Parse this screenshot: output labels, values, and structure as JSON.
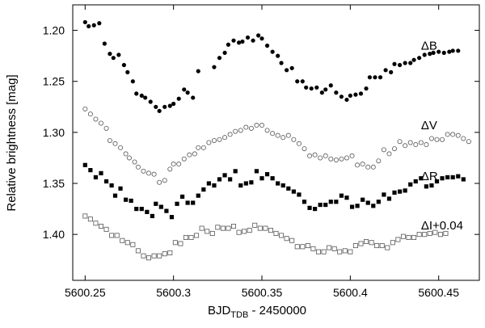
{
  "chart_data": {
    "type": "scatter",
    "title": "",
    "xlabel_main": "BJD",
    "xlabel_sub": "TDB",
    "xlabel_rest": " - 2450000",
    "ylabel": "Relative brightness [mag]",
    "xlim": [
      5600.243,
      5600.473
    ],
    "ylim": [
      1.175,
      1.445
    ],
    "y_inverted": true,
    "grid": false,
    "x_ticks": [
      5600.25,
      5600.3,
      5600.35,
      5600.4,
      5600.45
    ],
    "x_tick_labels": [
      "5600.25",
      "5600.3",
      "5600.35",
      "5600.4",
      "5600.45"
    ],
    "y_ticks": [
      1.2,
      1.25,
      1.3,
      1.35,
      1.4
    ],
    "y_tick_labels": [
      "1.20",
      "1.25",
      "1.30",
      "1.35",
      "1.40"
    ],
    "series": [
      {
        "name": "ΔB",
        "marker": "filled-circle",
        "color": "#000000",
        "label_x": 5600.44,
        "label_y": 1.215,
        "x": [
          5600.25,
          5600.252,
          5600.255,
          5600.258,
          5600.261,
          5600.264,
          5600.266,
          5600.269,
          5600.272,
          5600.274,
          5600.277,
          5600.279,
          5600.282,
          5600.284,
          5600.287,
          5600.29,
          5600.292,
          5600.295,
          5600.298,
          5600.3,
          5600.303,
          5600.306,
          5600.308,
          5600.311,
          5600.314,
          5600.323,
          5600.326,
          5600.329,
          5600.331,
          5600.334,
          5600.337,
          5600.339,
          5600.342,
          5600.345,
          5600.348,
          5600.35,
          5600.353,
          5600.356,
          5600.359,
          5600.361,
          5600.364,
          5600.367,
          5600.37,
          5600.373,
          5600.375,
          5600.378,
          5600.381,
          5600.384,
          5600.386,
          5600.389,
          5600.392,
          5600.395,
          5600.398,
          5600.4,
          5600.403,
          5600.406,
          5600.409,
          5600.411,
          5600.414,
          5600.417,
          5600.42,
          5600.423,
          5600.425,
          5600.428,
          5600.431,
          5600.434,
          5600.436,
          5600.439,
          5600.442,
          5600.445,
          5600.447,
          5600.45,
          5600.453,
          5600.456,
          5600.458,
          5600.461
        ],
        "y": [
          1.192,
          1.196,
          1.195,
          1.193,
          1.213,
          1.223,
          1.227,
          1.224,
          1.234,
          1.241,
          1.25,
          1.262,
          1.264,
          1.266,
          1.27,
          1.275,
          1.279,
          1.275,
          1.274,
          1.272,
          1.267,
          1.258,
          1.261,
          1.266,
          1.24,
          1.236,
          1.227,
          1.222,
          1.214,
          1.21,
          1.212,
          1.211,
          1.207,
          1.21,
          1.205,
          1.208,
          1.215,
          1.221,
          1.225,
          1.232,
          1.239,
          1.237,
          1.25,
          1.25,
          1.256,
          1.257,
          1.256,
          1.261,
          1.258,
          1.254,
          1.261,
          1.265,
          1.268,
          1.264,
          1.263,
          1.262,
          1.257,
          1.246,
          1.246,
          1.246,
          1.239,
          1.241,
          1.233,
          1.234,
          1.232,
          1.232,
          1.229,
          1.227,
          1.224,
          1.223,
          1.222,
          1.221,
          1.222,
          1.221,
          1.22,
          1.22
        ]
      },
      {
        "name": "ΔV",
        "marker": "open-circle",
        "color": "#555555",
        "label_x": 5600.44,
        "label_y": 1.293,
        "x": [
          5600.25,
          5600.253,
          5600.256,
          5600.259,
          5600.262,
          5600.264,
          5600.267,
          5600.27,
          5600.273,
          5600.275,
          5600.278,
          5600.28,
          5600.283,
          5600.286,
          5600.289,
          5600.292,
          5600.295,
          5600.298,
          5600.3,
          5600.303,
          5600.306,
          5600.309,
          5600.312,
          5600.314,
          5600.317,
          5600.32,
          5600.323,
          5600.326,
          5600.329,
          5600.332,
          5600.335,
          5600.338,
          5600.341,
          5600.344,
          5600.347,
          5600.35,
          5600.353,
          5600.356,
          5600.359,
          5600.362,
          5600.365,
          5600.368,
          5600.371,
          5600.374,
          5600.377,
          5600.38,
          5600.383,
          5600.386,
          5600.389,
          5600.392,
          5600.395,
          5600.398,
          5600.401,
          5600.404,
          5600.407,
          5600.41,
          5600.413,
          5600.416,
          5600.419,
          5600.422,
          5600.425,
          5600.428,
          5600.431,
          5600.434,
          5600.437,
          5600.44,
          5600.443,
          5600.446,
          5600.449,
          5600.452,
          5600.455,
          5600.458,
          5600.461,
          5600.464,
          5600.467
        ],
        "y": [
          1.277,
          1.282,
          1.287,
          1.291,
          1.296,
          1.308,
          1.311,
          1.315,
          1.321,
          1.325,
          1.329,
          1.334,
          1.338,
          1.34,
          1.341,
          1.349,
          1.347,
          1.336,
          1.331,
          1.331,
          1.326,
          1.322,
          1.321,
          1.315,
          1.315,
          1.31,
          1.308,
          1.307,
          1.305,
          1.302,
          1.299,
          1.298,
          1.295,
          1.296,
          1.293,
          1.293,
          1.298,
          1.301,
          1.303,
          1.305,
          1.303,
          1.307,
          1.311,
          1.316,
          1.323,
          1.322,
          1.325,
          1.323,
          1.326,
          1.327,
          1.326,
          1.325,
          1.323,
          1.332,
          1.331,
          1.334,
          1.334,
          1.328,
          1.317,
          1.321,
          1.316,
          1.309,
          1.313,
          1.31,
          1.312,
          1.31,
          1.312,
          1.306,
          1.307,
          1.307,
          1.302,
          1.302,
          1.303,
          1.306,
          1.309
        ]
      },
      {
        "name": "ΔR",
        "marker": "filled-square",
        "color": "#000000",
        "label_x": 5600.44,
        "label_y": 1.343,
        "x": [
          5600.25,
          5600.253,
          5600.256,
          5600.259,
          5600.262,
          5600.265,
          5600.267,
          5600.27,
          5600.273,
          5600.276,
          5600.279,
          5600.282,
          5600.285,
          5600.288,
          5600.29,
          5600.293,
          5600.296,
          5600.299,
          5600.302,
          5600.305,
          5600.308,
          5600.311,
          5600.314,
          5600.317,
          5600.32,
          5600.323,
          5600.326,
          5600.329,
          5600.332,
          5600.335,
          5600.338,
          5600.341,
          5600.344,
          5600.347,
          5600.35,
          5600.353,
          5600.356,
          5600.359,
          5600.362,
          5600.365,
          5600.368,
          5600.371,
          5600.374,
          5600.377,
          5600.38,
          5600.383,
          5600.386,
          5600.389,
          5600.392,
          5600.395,
          5600.398,
          5600.401,
          5600.404,
          5600.407,
          5600.41,
          5600.413,
          5600.416,
          5600.419,
          5600.422,
          5600.425,
          5600.428,
          5600.431,
          5600.434,
          5600.437,
          5600.44,
          5600.443,
          5600.446,
          5600.449,
          5600.452,
          5600.455,
          5600.458,
          5600.461,
          5600.464
        ],
        "y": [
          1.332,
          1.337,
          1.344,
          1.34,
          1.348,
          1.352,
          1.362,
          1.355,
          1.366,
          1.367,
          1.375,
          1.375,
          1.378,
          1.382,
          1.37,
          1.373,
          1.377,
          1.383,
          1.37,
          1.363,
          1.369,
          1.369,
          1.362,
          1.356,
          1.35,
          1.352,
          1.346,
          1.342,
          1.346,
          1.338,
          1.352,
          1.35,
          1.349,
          1.338,
          1.345,
          1.341,
          1.345,
          1.35,
          1.352,
          1.355,
          1.358,
          1.361,
          1.368,
          1.374,
          1.375,
          1.371,
          1.371,
          1.368,
          1.368,
          1.362,
          1.364,
          1.373,
          1.372,
          1.366,
          1.369,
          1.372,
          1.368,
          1.361,
          1.365,
          1.359,
          1.358,
          1.357,
          1.351,
          1.348,
          1.345,
          1.353,
          1.352,
          1.348,
          1.345,
          1.344,
          1.344,
          1.343,
          1.346
        ]
      },
      {
        "name": "ΔI+0.04",
        "marker": "open-square",
        "color": "#555555",
        "label_x": 5600.44,
        "label_y": 1.391,
        "x": [
          5600.25,
          5600.253,
          5600.256,
          5600.259,
          5600.262,
          5600.265,
          5600.268,
          5600.271,
          5600.274,
          5600.277,
          5600.28,
          5600.283,
          5600.286,
          5600.289,
          5600.292,
          5600.295,
          5600.298,
          5600.301,
          5600.304,
          5600.307,
          5600.31,
          5600.313,
          5600.316,
          5600.319,
          5600.322,
          5600.325,
          5600.328,
          5600.331,
          5600.334,
          5600.337,
          5600.34,
          5600.343,
          5600.346,
          5600.349,
          5600.352,
          5600.355,
          5600.358,
          5600.361,
          5600.364,
          5600.367,
          5600.37,
          5600.373,
          5600.376,
          5600.379,
          5600.382,
          5600.385,
          5600.388,
          5600.391,
          5600.394,
          5600.397,
          5600.4,
          5600.403,
          5600.406,
          5600.409,
          5600.412,
          5600.415,
          5600.418,
          5600.421,
          5600.424,
          5600.427,
          5600.43,
          5600.433,
          5600.436,
          5600.439,
          5600.442,
          5600.445,
          5600.448,
          5600.451,
          5600.454
        ],
        "y": [
          1.382,
          1.385,
          1.389,
          1.392,
          1.395,
          1.401,
          1.401,
          1.406,
          1.408,
          1.41,
          1.416,
          1.421,
          1.423,
          1.421,
          1.421,
          1.419,
          1.418,
          1.408,
          1.409,
          1.403,
          1.403,
          1.401,
          1.394,
          1.397,
          1.399,
          1.393,
          1.394,
          1.394,
          1.392,
          1.398,
          1.397,
          1.396,
          1.391,
          1.394,
          1.394,
          1.396,
          1.399,
          1.401,
          1.404,
          1.406,
          1.412,
          1.412,
          1.411,
          1.414,
          1.417,
          1.417,
          1.413,
          1.414,
          1.417,
          1.416,
          1.417,
          1.411,
          1.409,
          1.407,
          1.408,
          1.411,
          1.411,
          1.413,
          1.408,
          1.405,
          1.402,
          1.403,
          1.403,
          1.4,
          1.4,
          1.399,
          1.398,
          1.4,
          1.399
        ]
      }
    ]
  }
}
